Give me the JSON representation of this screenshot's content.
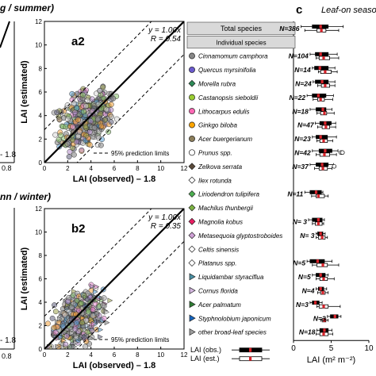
{
  "panels": {
    "a1_label_fragment": "g / summer)",
    "a1_tick_label": "0.8",
    "a1_legend_fragment": "- 1.8",
    "b1_label_fragment": "nn / winter)",
    "b1_tick_label": "0.8",
    "b1_legend_fragment": "- 1.8"
  },
  "chart_data": [
    {
      "id": "a2",
      "type": "scatter",
      "panel_label": "a2",
      "xlabel": "LAI (observed) – 1.8",
      "ylabel": "LAI (estimated)",
      "xlim": [
        0,
        12
      ],
      "ylim": [
        0,
        12
      ],
      "xticks": [
        "0",
        "2",
        "4",
        "6",
        "8",
        "10",
        "12"
      ],
      "yticks": [
        "0",
        "2",
        "4",
        "6",
        "8",
        "10",
        "12"
      ],
      "regression_label": "y = 1.00x",
      "r_label": "R = 0.54",
      "legend_label": "95% prediction limits",
      "fit_line": {
        "slope": 1.0,
        "intercept": 0
      },
      "prediction_limits": [
        -2.8,
        2.8
      ],
      "point_cloud": {
        "center": [
          3.6,
          3.8
        ],
        "x_range": [
          0.5,
          8.5
        ],
        "y_range": [
          0.5,
          9.0
        ],
        "approx_count": 420
      }
    },
    {
      "id": "b2",
      "type": "scatter",
      "panel_label": "b2",
      "xlabel": "LAI (observed) – 1.8",
      "ylabel": "LAI (estimated)",
      "xlim": [
        0,
        12
      ],
      "ylim": [
        0,
        12
      ],
      "xticks": [
        "0",
        "2",
        "4",
        "6",
        "8",
        "10",
        "12"
      ],
      "yticks": [
        "0",
        "2",
        "4",
        "6",
        "8",
        "10",
        "12"
      ],
      "regression_label": "y = 1.00x",
      "r_label": "R = 0.35",
      "legend_label": "95% prediction limits",
      "fit_line": {
        "slope": 1.0,
        "intercept": 0
      },
      "prediction_limits": [
        -2.8,
        2.8
      ],
      "point_cloud": {
        "center": [
          3.0,
          2.6
        ],
        "x_range": [
          0.3,
          8.0
        ],
        "y_range": [
          0.2,
          7.0
        ],
        "approx_count": 380
      }
    },
    {
      "id": "c",
      "type": "box",
      "panel_label": "c",
      "title": "Leaf-on season",
      "xlabel": "LAI (m² m⁻²)",
      "xlim": [
        0,
        10
      ],
      "xticks": [
        "0",
        "5",
        "10"
      ],
      "legend": [
        {
          "label": "LAI (obs.)",
          "style": "black box, red median"
        },
        {
          "label": "LAI (est.)",
          "style": "white box, red median"
        }
      ],
      "colors": {
        "observed_box": "#000000",
        "estimated_box": "#ffffff",
        "median": "#d9232a"
      },
      "rows": [
        {
          "label": "Total species",
          "header": true,
          "n": "N=386",
          "obs": [
            1.0,
            2.5,
            3.6,
            4.6,
            6.6
          ],
          "est": [
            1.5,
            3.1,
            3.7,
            4.3,
            6.0
          ]
        },
        {
          "label": "Individual species",
          "header": true,
          "n": ""
        },
        {
          "label": "Cinnamomum camphora",
          "marker": "circle",
          "color": "#888888",
          "n": "N=104",
          "obs": [
            2.2,
            2.9,
            3.6,
            4.6,
            5.8
          ],
          "est": [
            3.0,
            3.4,
            4.0,
            4.8,
            6.0
          ]
        },
        {
          "label": "Quercus myrsinifolia",
          "marker": "circle",
          "color": "#6a5acd",
          "n": "N=14",
          "obs": [
            2.5,
            2.8,
            3.5,
            4.6,
            5.5
          ],
          "est": [
            3.3,
            3.6,
            4.2,
            5.0,
            5.8
          ]
        },
        {
          "label": "Morella rubra",
          "marker": "diamond",
          "color": "#2e8b57",
          "n": "N=24",
          "obs": [
            2.6,
            2.9,
            3.8,
            4.6,
            5.5
          ],
          "est": [
            3.2,
            3.7,
            4.2,
            4.8,
            5.5
          ]
        },
        {
          "label": "Castanopsis sieboldii",
          "marker": "circle",
          "color": "#9acd32",
          "n": "N=22",
          "obs": [
            1.8,
            2.5,
            3.3,
            4.3,
            5.3
          ],
          "est": [
            2.6,
            3.2,
            3.6,
            4.1,
            5.2
          ]
        },
        {
          "label": "Lithocarpus edulis",
          "marker": "circle",
          "color": "#ff69b4",
          "n": "N=18",
          "obs": [
            2.2,
            3.0,
            3.9,
            4.3,
            5.1
          ],
          "est": [
            3.1,
            3.6,
            4.1,
            4.4,
            5.4
          ]
        },
        {
          "label": "Ginkgo biloba",
          "marker": "circle",
          "color": "#ffa500",
          "n": "N=47",
          "obs": [
            2.9,
            3.5,
            4.2,
            5.0,
            5.6
          ],
          "est": [
            3.2,
            3.8,
            4.3,
            4.8,
            5.6
          ]
        },
        {
          "label": "Acer buergerianum",
          "marker": "circle",
          "color": "#8b7d5a",
          "n": "N=23",
          "obs": [
            2.5,
            3.0,
            3.6,
            4.5,
            5.7
          ],
          "est": [
            3.1,
            3.5,
            4.0,
            4.5,
            5.2
          ]
        },
        {
          "label": "Prunus spp.",
          "marker": "circle",
          "color": "#ffffff",
          "n": "N=42",
          "obs": [
            2.5,
            3.4,
            4.2,
            5.1,
            5.9
          ],
          "est": [
            3.0,
            3.5,
            4.1,
            4.8,
            5.7
          ],
          "outliers": [
            6.3,
            6.5
          ]
        },
        {
          "label": "Zelkova serrata",
          "marker": "diamond",
          "color": "#5a4a3a",
          "n": "N=37",
          "obs": [
            2.2,
            3.0,
            3.8,
            4.6,
            5.3
          ],
          "est": [
            2.8,
            3.4,
            3.9,
            4.5,
            5.1
          ],
          "outliers": [
            5.4
          ]
        },
        {
          "label": "Ilex rotunda",
          "marker": "diamond",
          "color": "#ffffff",
          "n": ""
        },
        {
          "label": "Liriodendron tulipifera",
          "marker": "diamond",
          "color": "#4caf50",
          "n": "N=11",
          "obs": [
            1.5,
            2.2,
            3.0,
            3.7,
            3.9
          ],
          "est": [
            2.4,
            3.0,
            3.3,
            4.1,
            4.6
          ]
        },
        {
          "label": "Machilus thunbergii",
          "marker": "diamond",
          "color": "#7cb342",
          "n": ""
        },
        {
          "label": "Magnolia kobus",
          "marker": "diamond",
          "color": "#e91e63",
          "n": "N= 3",
          "obs": [
            2.0,
            2.5,
            3.3,
            3.8,
            4.1
          ],
          "est": [
            2.5,
            2.9,
            3.3,
            3.8,
            4.0
          ]
        },
        {
          "label": "Metasequoia glyptostroboides",
          "marker": "diamond",
          "color": "#cfa0d6",
          "n": "N= 3",
          "obs": [
            3.0,
            3.2,
            3.6,
            3.9,
            4.2
          ],
          "est": [
            3.0,
            3.3,
            3.8,
            4.2,
            4.5
          ]
        },
        {
          "label": "Celtis sinensis",
          "marker": "diamond",
          "color": "#ffffff",
          "n": ""
        },
        {
          "label": "Platanus spp.",
          "marker": "diamond",
          "color": "#ffffff",
          "n": "N=5",
          "obs": [
            1.8,
            2.2,
            3.2,
            4.1,
            5.1
          ],
          "est": [
            2.5,
            3.1,
            3.9,
            4.5,
            6.0
          ]
        },
        {
          "label": "Liquidambar styraciflua",
          "marker": "triangle",
          "color": "#4a90a4",
          "n": "N=5",
          "obs": [
            2.5,
            3.0,
            3.6,
            4.2,
            4.6
          ],
          "est": [
            3.0,
            3.5,
            4.0,
            4.5,
            5.4
          ]
        },
        {
          "label": "Cornus florida",
          "marker": "triangle",
          "color": "#d4b8e0",
          "n": "N=4",
          "obs": [
            3.0,
            3.3,
            3.6,
            4.0,
            4.4
          ],
          "est": [
            3.2,
            3.6,
            3.9,
            4.2,
            4.6
          ]
        },
        {
          "label": "Acer palmatum",
          "marker": "triangle",
          "color": "#2e7d32",
          "n": "N=3",
          "obs": [
            2.2,
            2.5,
            2.9,
            3.4,
            3.8
          ],
          "est": [
            3.1,
            3.4,
            4.0,
            4.6,
            6.2
          ]
        },
        {
          "label": "Styphnolobium japonicum",
          "marker": "triangle",
          "color": "#1565c0",
          "n": "N=3",
          "obs": [
            4.5,
            4.9,
            5.5,
            5.9,
            6.3
          ],
          "est": [
            3.6,
            3.8,
            4.1,
            4.3,
            4.6
          ]
        },
        {
          "label": "other broad-leaf species",
          "marker": "triangle",
          "color": "#9e9e9e",
          "n": "N=18",
          "obs": [
            3.1,
            3.5,
            4.1,
            4.6,
            5.1
          ],
          "est": [
            3.0,
            3.5,
            4.0,
            4.6,
            5.2
          ]
        }
      ]
    }
  ]
}
